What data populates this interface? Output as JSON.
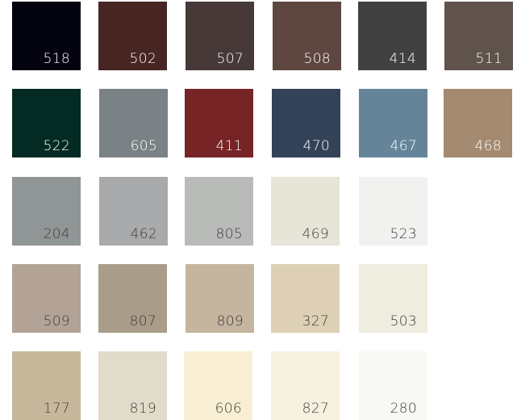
{
  "palette": {
    "swatches": [
      {
        "code": "518",
        "color": "#030310",
        "text_color": "#ffffff"
      },
      {
        "code": "502",
        "color": "#472523",
        "text_color": "#ffffff"
      },
      {
        "code": "507",
        "color": "#463937",
        "text_color": "#ffffff"
      },
      {
        "code": "508",
        "color": "#5e4740",
        "text_color": "#ffffff"
      },
      {
        "code": "414",
        "color": "#414141",
        "text_color": "#ffffff"
      },
      {
        "code": "511",
        "color": "#60534c",
        "text_color": "#ffffff"
      },
      {
        "code": "522",
        "color": "#042b23",
        "text_color": "#ffffff"
      },
      {
        "code": "605",
        "color": "#7a8285",
        "text_color": "#ffffff"
      },
      {
        "code": "411",
        "color": "#772427",
        "text_color": "#ffffff"
      },
      {
        "code": "470",
        "color": "#344257",
        "text_color": "#ffffff"
      },
      {
        "code": "467",
        "color": "#65849a",
        "text_color": "#ffffff"
      },
      {
        "code": "468",
        "color": "#a38a70",
        "text_color": "#ffffff"
      },
      {
        "code": "204",
        "color": "#909595",
        "text_color": "#3c3c3c"
      },
      {
        "code": "462",
        "color": "#a9aaac",
        "text_color": "#3c3c3c"
      },
      {
        "code": "805",
        "color": "#b9bbb9",
        "text_color": "#3c3c3c"
      },
      {
        "code": "469",
        "color": "#e7e4d8",
        "text_color": "#3c3c3c"
      },
      {
        "code": "523",
        "color": "#f1f2ef",
        "text_color": "#3c3c3c"
      },
      {
        "code": "509",
        "color": "#b3a396",
        "text_color": "#3c3c3c"
      },
      {
        "code": "807",
        "color": "#a99c89",
        "text_color": "#3c3c3c"
      },
      {
        "code": "809",
        "color": "#c5b49e",
        "text_color": "#3c3c3c"
      },
      {
        "code": "327",
        "color": "#ddd0b4",
        "text_color": "#3c3c3c"
      },
      {
        "code": "503",
        "color": "#efece0",
        "text_color": "#3c3c3c"
      },
      {
        "code": "177",
        "color": "#c7b89c",
        "text_color": "#3c3c3c"
      },
      {
        "code": "819",
        "color": "#e1dcca",
        "text_color": "#3c3c3c"
      },
      {
        "code": "606",
        "color": "#f7eed3",
        "text_color": "#3c3c3c"
      },
      {
        "code": "827",
        "color": "#f6f0df",
        "text_color": "#3c3c3c"
      },
      {
        "code": "280",
        "color": "#f8f8f5",
        "text_color": "#3c3c3c"
      }
    ]
  }
}
